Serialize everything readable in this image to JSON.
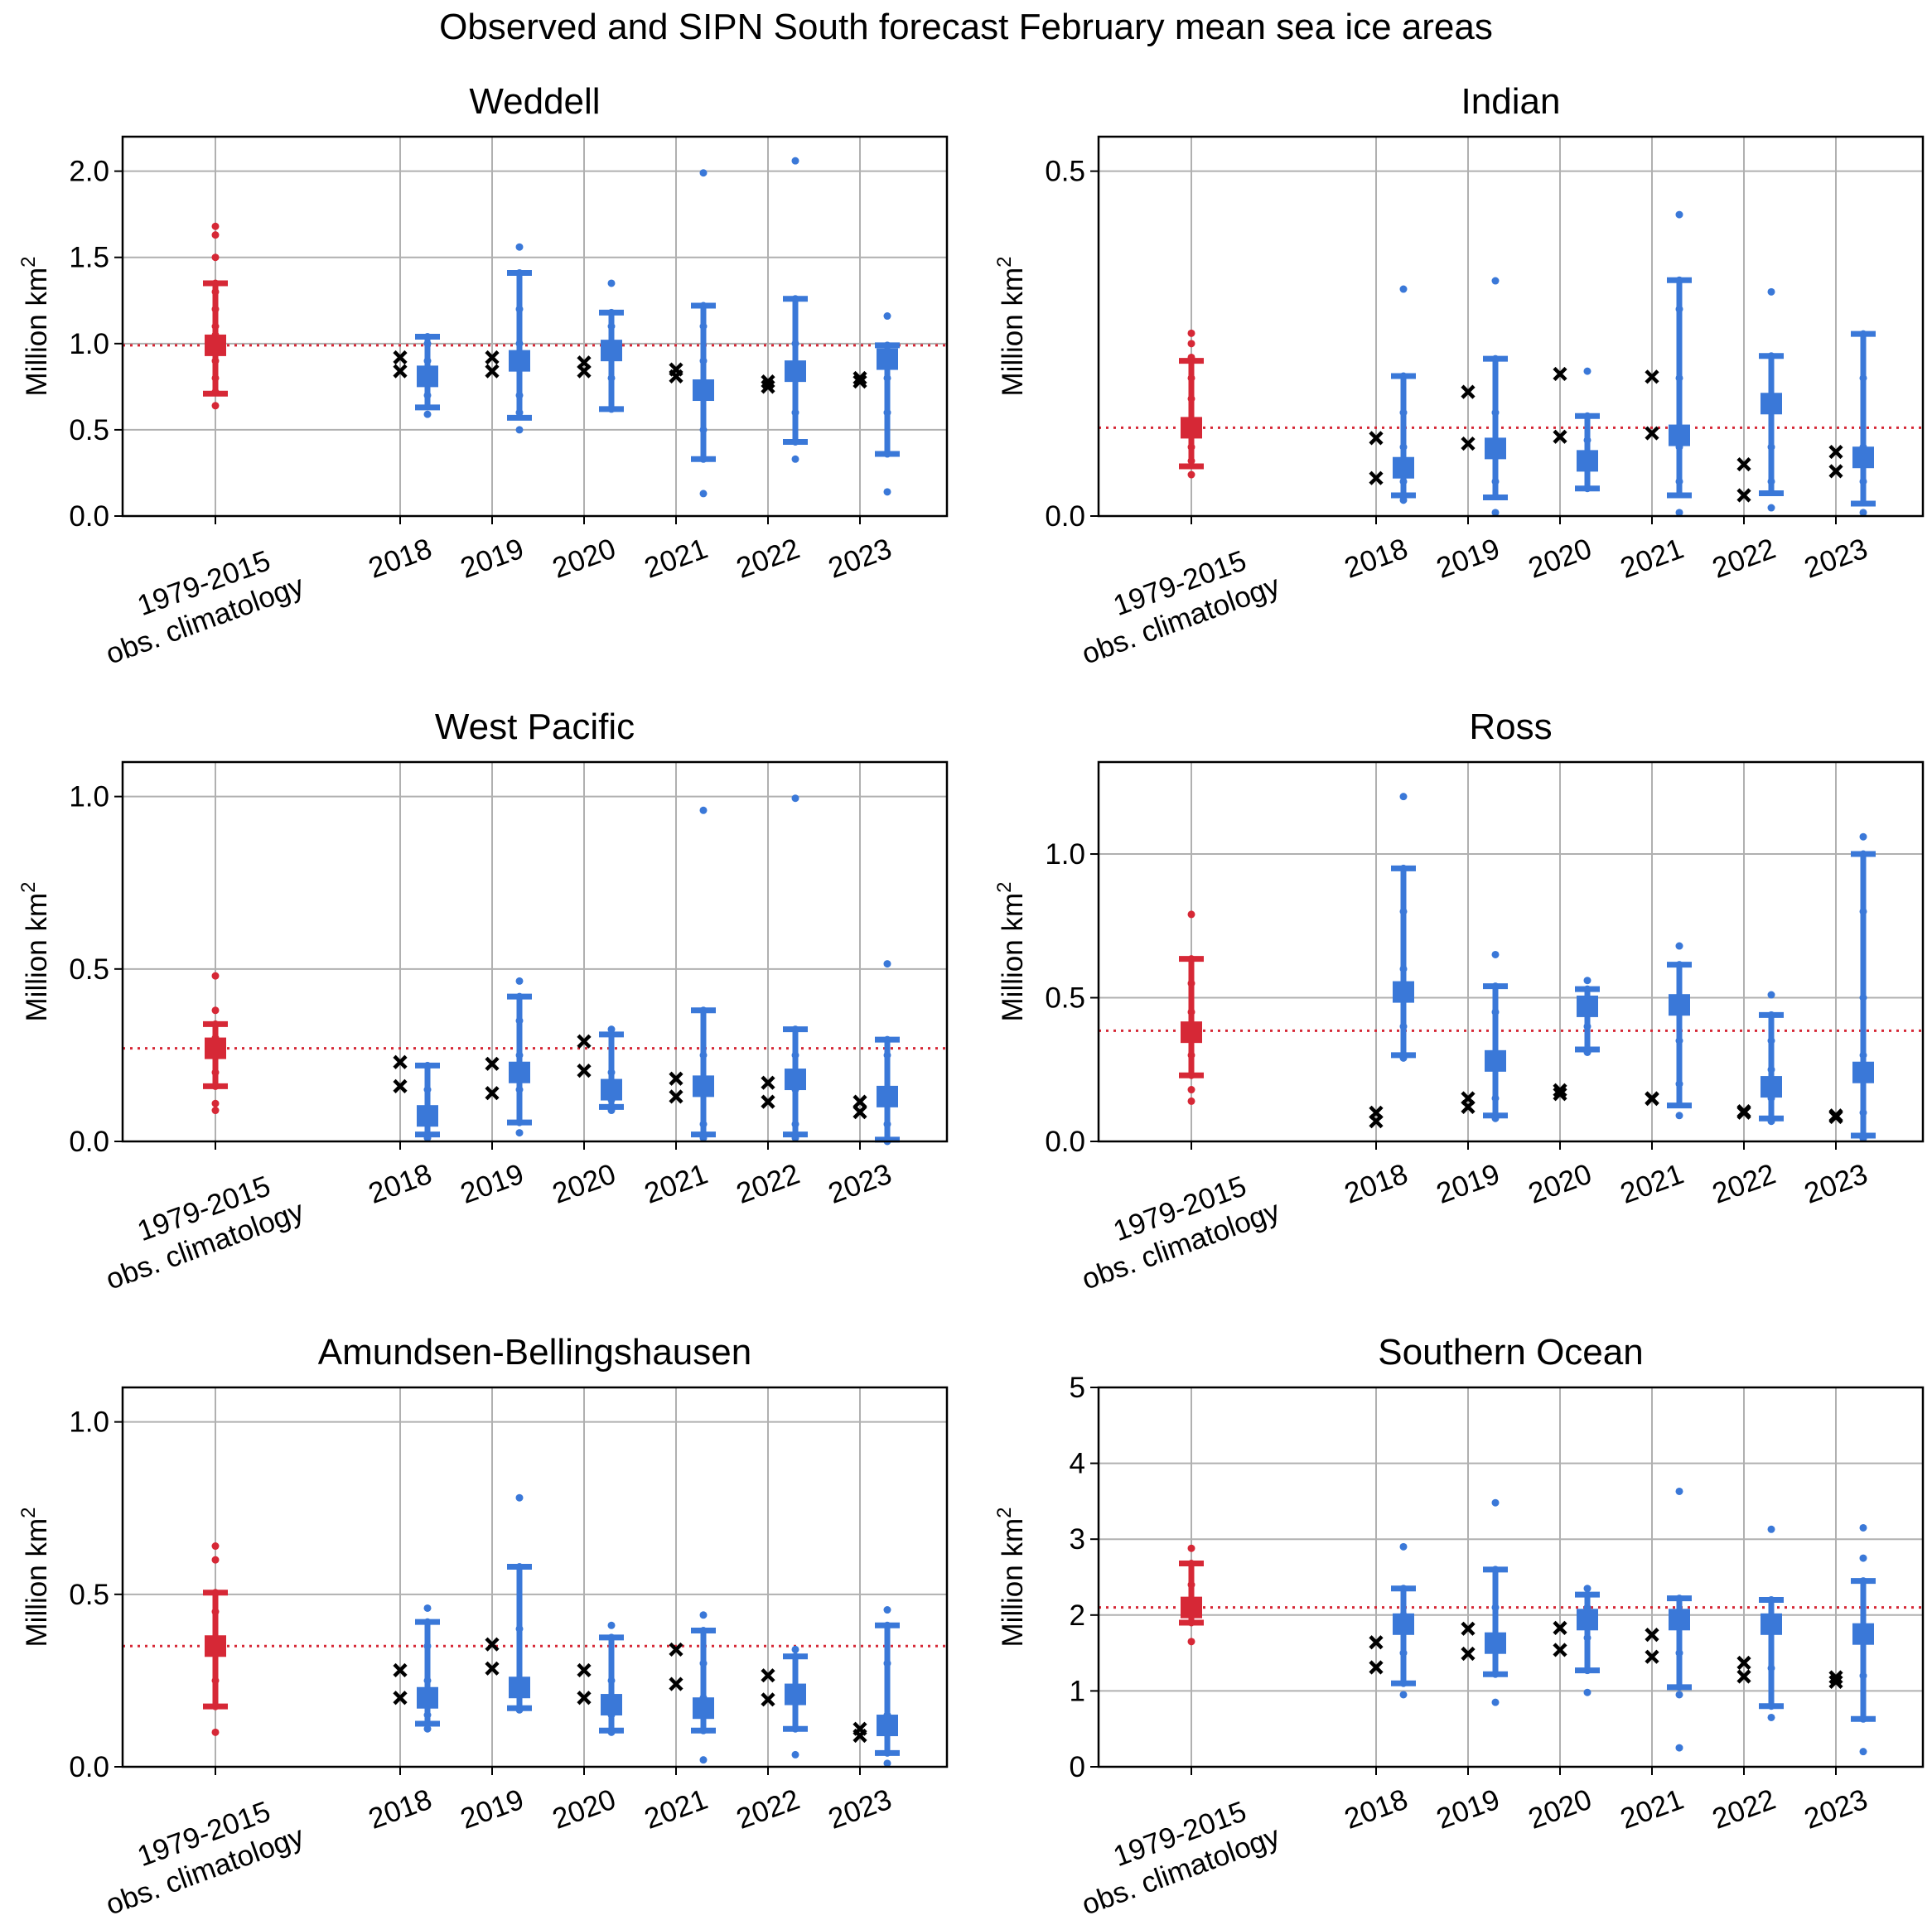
{
  "figure_title": "Observed and SIPN South forecast February mean sea ice areas",
  "colors": {
    "climatology": "#d62836",
    "forecast": "#3a78d8",
    "observed": "#000000",
    "grid": "#b0b0b0"
  },
  "climatology_label": [
    "1979-2015",
    "obs. climatology"
  ],
  "chart_data": [
    {
      "type": "errorbar-strip",
      "title": "Weddell",
      "ylabel": "Million km",
      "ylabel_superscript": "2",
      "ylim": [
        0,
        2.2
      ],
      "yticks": [
        0.0,
        0.5,
        1.0,
        1.5,
        2.0
      ],
      "ytick_labels": [
        "0.0",
        "0.5",
        "1.0",
        "1.5",
        "2.0"
      ],
      "categories": [
        "2018",
        "2019",
        "2020",
        "2021",
        "2022",
        "2023"
      ],
      "climatology": {
        "mean": 0.99,
        "low": 0.71,
        "high": 1.35,
        "points": [
          0.64,
          0.72,
          0.8,
          0.9,
          0.95,
          1.0,
          1.05,
          1.1,
          1.2,
          1.3,
          1.35,
          1.5,
          1.63,
          1.68
        ]
      },
      "observed": [
        [
          0.84,
          0.92
        ],
        [
          0.84,
          0.92
        ],
        [
          0.84,
          0.89
        ],
        [
          0.81,
          0.85
        ],
        [
          0.75,
          0.78
        ],
        [
          0.78,
          0.8
        ]
      ],
      "forecasts": [
        {
          "median": 0.81,
          "low": 0.63,
          "high": 1.04,
          "points": [
            0.59,
            0.7,
            0.8,
            0.9,
            1.0,
            1.04
          ]
        },
        {
          "median": 0.9,
          "low": 0.57,
          "high": 1.41,
          "points": [
            0.5,
            0.6,
            0.7,
            0.85,
            1.0,
            1.2,
            1.41,
            1.56
          ]
        },
        {
          "median": 0.96,
          "low": 0.62,
          "high": 1.18,
          "points": [
            0.62,
            0.8,
            0.95,
            1.1,
            1.18,
            1.35
          ]
        },
        {
          "median": 0.73,
          "low": 0.33,
          "high": 1.22,
          "points": [
            0.13,
            0.33,
            0.5,
            0.7,
            0.9,
            1.1,
            1.22,
            1.99
          ]
        },
        {
          "median": 0.84,
          "low": 0.43,
          "high": 1.26,
          "points": [
            0.33,
            0.43,
            0.6,
            0.8,
            1.0,
            1.26,
            2.06
          ]
        },
        {
          "median": 0.91,
          "low": 0.36,
          "high": 0.99,
          "points": [
            0.14,
            0.36,
            0.6,
            0.8,
            0.95,
            0.99,
            1.16
          ]
        }
      ],
      "climatology_line": 0.99
    },
    {
      "type": "errorbar-strip",
      "title": "Indian",
      "ylabel": "Million km",
      "ylabel_superscript": "2",
      "ylim": [
        0,
        0.55
      ],
      "yticks": [
        0.0,
        0.5
      ],
      "ytick_labels": [
        "0.0",
        "0.5"
      ],
      "categories": [
        "2018",
        "2019",
        "2020",
        "2021",
        "2022",
        "2023"
      ],
      "climatology": {
        "mean": 0.128,
        "low": 0.072,
        "high": 0.225,
        "points": [
          0.06,
          0.08,
          0.1,
          0.12,
          0.14,
          0.17,
          0.2,
          0.23,
          0.25,
          0.265
        ]
      },
      "observed": [
        [
          0.055,
          0.113
        ],
        [
          0.105,
          0.18
        ],
        [
          0.115,
          0.206
        ],
        [
          0.12,
          0.202
        ],
        [
          0.03,
          0.075
        ],
        [
          0.065,
          0.093
        ]
      ],
      "forecasts": [
        {
          "median": 0.07,
          "low": 0.03,
          "high": 0.203,
          "points": [
            0.023,
            0.05,
            0.1,
            0.15,
            0.203,
            0.329
          ]
        },
        {
          "median": 0.098,
          "low": 0.027,
          "high": 0.228,
          "points": [
            0.005,
            0.05,
            0.1,
            0.15,
            0.228,
            0.341
          ]
        },
        {
          "median": 0.08,
          "low": 0.04,
          "high": 0.145,
          "points": [
            0.04,
            0.07,
            0.11,
            0.145,
            0.21
          ]
        },
        {
          "median": 0.117,
          "low": 0.03,
          "high": 0.342,
          "points": [
            0.005,
            0.05,
            0.1,
            0.2,
            0.3,
            0.342,
            0.437
          ]
        },
        {
          "median": 0.163,
          "low": 0.033,
          "high": 0.232,
          "points": [
            0.012,
            0.05,
            0.1,
            0.16,
            0.232,
            0.325
          ]
        },
        {
          "median": 0.085,
          "low": 0.018,
          "high": 0.264,
          "points": [
            0.005,
            0.05,
            0.1,
            0.2,
            0.264
          ]
        }
      ],
      "climatology_line": 0.128
    },
    {
      "type": "errorbar-strip",
      "title": "West Pacific",
      "ylabel": "Million km",
      "ylabel_superscript": "2",
      "ylim": [
        0,
        1.1
      ],
      "yticks": [
        0.0,
        0.5,
        1.0
      ],
      "ytick_labels": [
        "0.0",
        "0.5",
        "1.0"
      ],
      "categories": [
        "2018",
        "2019",
        "2020",
        "2021",
        "2022",
        "2023"
      ],
      "climatology": {
        "mean": 0.27,
        "low": 0.16,
        "high": 0.34,
        "points": [
          0.09,
          0.11,
          0.16,
          0.2,
          0.25,
          0.3,
          0.34,
          0.38,
          0.48
        ]
      },
      "observed": [
        [
          0.16,
          0.23
        ],
        [
          0.14,
          0.225
        ],
        [
          0.205,
          0.29
        ],
        [
          0.13,
          0.182
        ],
        [
          0.115,
          0.17
        ],
        [
          0.085,
          0.115
        ]
      ],
      "forecasts": [
        {
          "median": 0.074,
          "low": 0.02,
          "high": 0.22,
          "points": [
            0.01,
            0.02,
            0.08,
            0.15,
            0.22
          ]
        },
        {
          "median": 0.2,
          "low": 0.055,
          "high": 0.42,
          "points": [
            0.025,
            0.055,
            0.15,
            0.25,
            0.35,
            0.42,
            0.465
          ]
        },
        {
          "median": 0.15,
          "low": 0.1,
          "high": 0.31,
          "points": [
            0.09,
            0.12,
            0.2,
            0.31,
            0.325
          ]
        },
        {
          "median": 0.16,
          "low": 0.02,
          "high": 0.38,
          "points": [
            0.01,
            0.05,
            0.15,
            0.25,
            0.38,
            0.96
          ]
        },
        {
          "median": 0.18,
          "low": 0.02,
          "high": 0.325,
          "points": [
            0.01,
            0.05,
            0.15,
            0.25,
            0.325,
            0.995
          ]
        },
        {
          "median": 0.13,
          "low": 0.005,
          "high": 0.295,
          "points": [
            0.0,
            0.05,
            0.15,
            0.25,
            0.295,
            0.515
          ]
        }
      ],
      "climatology_line": 0.27
    },
    {
      "type": "errorbar-strip",
      "title": "Ross",
      "ylabel": "Million km",
      "ylabel_superscript": "2",
      "ylim": [
        0,
        1.32
      ],
      "yticks": [
        0.0,
        0.5,
        1.0
      ],
      "ytick_labels": [
        "0.0",
        "0.5",
        "1.0"
      ],
      "categories": [
        "2018",
        "2019",
        "2020",
        "2021",
        "2022",
        "2023"
      ],
      "climatology": {
        "mean": 0.38,
        "low": 0.23,
        "high": 0.635,
        "points": [
          0.14,
          0.18,
          0.23,
          0.3,
          0.38,
          0.45,
          0.55,
          0.635,
          0.79
        ]
      },
      "observed": [
        [
          0.07,
          0.1
        ],
        [
          0.12,
          0.15
        ],
        [
          0.165,
          0.178
        ],
        [
          0.148,
          0.15
        ],
        [
          0.1,
          0.105
        ],
        [
          0.085,
          0.09
        ]
      ],
      "forecasts": [
        {
          "median": 0.52,
          "low": 0.3,
          "high": 0.95,
          "points": [
            0.29,
            0.4,
            0.6,
            0.8,
            0.95,
            1.2
          ]
        },
        {
          "median": 0.28,
          "low": 0.09,
          "high": 0.54,
          "points": [
            0.08,
            0.15,
            0.3,
            0.45,
            0.54,
            0.65
          ]
        },
        {
          "median": 0.47,
          "low": 0.32,
          "high": 0.53,
          "points": [
            0.31,
            0.4,
            0.5,
            0.53,
            0.56
          ]
        },
        {
          "median": 0.475,
          "low": 0.125,
          "high": 0.615,
          "points": [
            0.09,
            0.2,
            0.35,
            0.5,
            0.615,
            0.68
          ]
        },
        {
          "median": 0.19,
          "low": 0.08,
          "high": 0.44,
          "points": [
            0.07,
            0.15,
            0.25,
            0.35,
            0.44,
            0.51
          ]
        },
        {
          "median": 0.24,
          "low": 0.02,
          "high": 1.0,
          "points": [
            0.01,
            0.1,
            0.3,
            0.5,
            0.8,
            1.0,
            1.06
          ]
        }
      ],
      "climatology_line": 0.385
    },
    {
      "type": "errorbar-strip",
      "title": "Amundsen-Bellingshausen",
      "ylabel": "Million km",
      "ylabel_superscript": "2",
      "ylim": [
        0,
        1.1
      ],
      "yticks": [
        0.0,
        0.5,
        1.0
      ],
      "ytick_labels": [
        "0.0",
        "0.5",
        "1.0"
      ],
      "categories": [
        "2018",
        "2019",
        "2020",
        "2021",
        "2022",
        "2023"
      ],
      "climatology": {
        "mean": 0.35,
        "low": 0.175,
        "high": 0.505,
        "points": [
          0.1,
          0.175,
          0.25,
          0.35,
          0.45,
          0.505,
          0.6,
          0.64
        ]
      },
      "observed": [
        [
          0.2,
          0.28
        ],
        [
          0.285,
          0.355
        ],
        [
          0.2,
          0.28
        ],
        [
          0.24,
          0.34
        ],
        [
          0.195,
          0.265
        ],
        [
          0.09,
          0.11
        ]
      ],
      "forecasts": [
        {
          "median": 0.2,
          "low": 0.125,
          "high": 0.42,
          "points": [
            0.11,
            0.15,
            0.25,
            0.35,
            0.42,
            0.46
          ]
        },
        {
          "median": 0.23,
          "low": 0.17,
          "high": 0.58,
          "points": [
            0.165,
            0.25,
            0.4,
            0.58,
            0.78
          ]
        },
        {
          "median": 0.18,
          "low": 0.105,
          "high": 0.375,
          "points": [
            0.1,
            0.15,
            0.25,
            0.375,
            0.41
          ]
        },
        {
          "median": 0.17,
          "low": 0.105,
          "high": 0.395,
          "points": [
            0.02,
            0.105,
            0.2,
            0.3,
            0.395,
            0.44
          ]
        },
        {
          "median": 0.21,
          "low": 0.11,
          "high": 0.32,
          "points": [
            0.035,
            0.11,
            0.2,
            0.32,
            0.34
          ]
        },
        {
          "median": 0.12,
          "low": 0.04,
          "high": 0.41,
          "points": [
            0.01,
            0.04,
            0.15,
            0.3,
            0.41,
            0.455
          ]
        }
      ],
      "climatology_line": 0.35
    },
    {
      "type": "errorbar-strip",
      "title": "Southern Ocean",
      "ylabel": "Million km",
      "ylabel_superscript": "2",
      "ylim": [
        0,
        5
      ],
      "yticks": [
        0,
        1,
        2,
        3,
        4,
        5
      ],
      "ytick_labels": [
        "0",
        "1",
        "2",
        "3",
        "4",
        "5"
      ],
      "categories": [
        "2018",
        "2019",
        "2020",
        "2021",
        "2022",
        "2023"
      ],
      "climatology": {
        "mean": 2.1,
        "low": 1.9,
        "high": 2.68,
        "points": [
          1.65,
          1.9,
          2.0,
          2.2,
          2.4,
          2.68,
          2.88
        ]
      },
      "observed": [
        [
          1.31,
          1.64
        ],
        [
          1.49,
          1.82
        ],
        [
          1.54,
          1.83
        ],
        [
          1.45,
          1.74
        ],
        [
          1.19,
          1.37
        ],
        [
          1.12,
          1.18
        ]
      ],
      "forecasts": [
        {
          "median": 1.88,
          "low": 1.1,
          "high": 2.35,
          "points": [
            0.95,
            1.1,
            1.5,
            2.0,
            2.35,
            2.9
          ]
        },
        {
          "median": 1.63,
          "low": 1.22,
          "high": 2.6,
          "points": [
            0.85,
            1.22,
            1.6,
            2.1,
            2.6,
            3.48
          ]
        },
        {
          "median": 1.94,
          "low": 1.27,
          "high": 2.27,
          "points": [
            0.98,
            1.27,
            1.7,
            2.1,
            2.27,
            2.35
          ]
        },
        {
          "median": 1.94,
          "low": 1.05,
          "high": 2.22,
          "points": [
            0.25,
            0.95,
            1.05,
            1.5,
            2.0,
            2.22,
            3.63
          ]
        },
        {
          "median": 1.88,
          "low": 0.8,
          "high": 2.2,
          "points": [
            0.65,
            0.8,
            1.3,
            1.8,
            2.2,
            3.13
          ]
        },
        {
          "median": 1.75,
          "low": 0.63,
          "high": 2.45,
          "points": [
            0.2,
            0.63,
            1.2,
            1.8,
            2.45,
            2.75,
            3.15
          ]
        }
      ],
      "climatology_line": 2.1
    }
  ]
}
